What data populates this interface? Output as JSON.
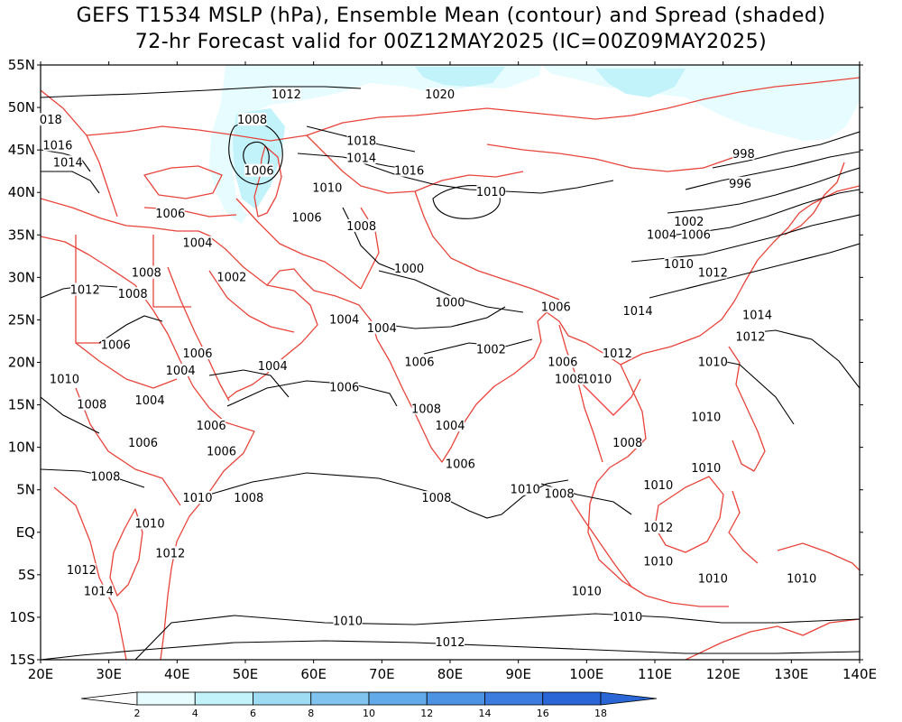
{
  "title_line1": "GEFS T1534 MSLP (hPa), Ensemble Mean (contour) and Spread (shaded)",
  "title_line2": "72-hr Forecast valid for 00Z12MAY2025 (IC=00Z09MAY2025)",
  "lat_labels": [
    "55N",
    "50N",
    "45N",
    "40N",
    "35N",
    "30N",
    "25N",
    "20N",
    "15N",
    "10N",
    "5N",
    "EQ",
    "5S",
    "10S",
    "15S"
  ],
  "lon_labels": [
    "20E",
    "30E",
    "40E",
    "50E",
    "60E",
    "70E",
    "80E",
    "90E",
    "100E",
    "110E",
    "120E",
    "130E",
    "140E"
  ],
  "colorbar": {
    "ticks": [
      "2",
      "4",
      "6",
      "8",
      "10",
      "12",
      "14",
      "16",
      "18"
    ],
    "colors": [
      "#e6fcff",
      "#c2f2fa",
      "#9ddcf2",
      "#7fc3ee",
      "#62aaea",
      "#4d93e4",
      "#3b7cde",
      "#2a66d6"
    ]
  },
  "contour_labels": [
    {
      "text": "1012",
      "lon": 56,
      "lat": 51.5
    },
    {
      "text": "1008",
      "lon": 51,
      "lat": 48.5
    },
    {
      "text": "1006",
      "lon": 52,
      "lat": 42.5
    },
    {
      "text": "1010",
      "lon": 62,
      "lat": 40.5
    },
    {
      "text": "1006",
      "lon": 59,
      "lat": 37
    },
    {
      "text": "1008",
      "lon": 67,
      "lat": 36
    },
    {
      "text": "1018",
      "lon": 67,
      "lat": 46
    },
    {
      "text": "1014",
      "lon": 67,
      "lat": 44
    },
    {
      "text": "1016",
      "lon": 74,
      "lat": 42.5
    },
    {
      "text": "1020",
      "lon": 78.5,
      "lat": 51.5
    },
    {
      "text": "1010",
      "lon": 86,
      "lat": 40
    },
    {
      "text": "998",
      "lon": 123,
      "lat": 44.5
    },
    {
      "text": "996",
      "lon": 122.5,
      "lat": 41
    },
    {
      "text": "1002",
      "lon": 115,
      "lat": 36.5
    },
    {
      "text": "1004",
      "lon": 111,
      "lat": 35
    },
    {
      "text": "1006",
      "lon": 116,
      "lat": 35
    },
    {
      "text": "1010",
      "lon": 113.5,
      "lat": 31.5
    },
    {
      "text": "1012",
      "lon": 118.5,
      "lat": 30.5
    },
    {
      "text": "1014",
      "lon": 107.5,
      "lat": 26
    },
    {
      "text": "1014",
      "lon": 125,
      "lat": 25.5
    },
    {
      "text": "1012",
      "lon": 124,
      "lat": 23
    },
    {
      "text": "1010",
      "lon": 118.5,
      "lat": 20
    },
    {
      "text": "1010",
      "lon": 117.5,
      "lat": 13.5
    },
    {
      "text": "1010",
      "lon": 117.5,
      "lat": 7.5
    },
    {
      "text": "1010",
      "lon": 110.5,
      "lat": 5.5
    },
    {
      "text": "1012",
      "lon": 110.5,
      "lat": 0.5
    },
    {
      "text": "1010",
      "lon": 110.5,
      "lat": -3.5
    },
    {
      "text": "1010",
      "lon": 118.5,
      "lat": -5.5
    },
    {
      "text": "1010",
      "lon": 131.5,
      "lat": -5.5
    },
    {
      "text": "1010",
      "lon": 100,
      "lat": -7
    },
    {
      "text": "1010",
      "lon": 106,
      "lat": -10
    },
    {
      "text": "1012",
      "lon": 80,
      "lat": -13
    },
    {
      "text": "1010",
      "lon": 65,
      "lat": -10.5
    },
    {
      "text": "1008",
      "lon": 78,
      "lat": 4
    },
    {
      "text": "1010",
      "lon": 91,
      "lat": 5
    },
    {
      "text": "1008",
      "lon": 96,
      "lat": 4.5
    },
    {
      "text": "1006",
      "lon": 81.5,
      "lat": 8
    },
    {
      "text": "1004",
      "lon": 80,
      "lat": 12.5
    },
    {
      "text": "1008",
      "lon": 76.5,
      "lat": 14.5
    },
    {
      "text": "1006",
      "lon": 75.5,
      "lat": 20
    },
    {
      "text": "1004",
      "lon": 70,
      "lat": 24
    },
    {
      "text": "1002",
      "lon": 86,
      "lat": 21.5
    },
    {
      "text": "1000",
      "lon": 80,
      "lat": 27
    },
    {
      "text": "1000",
      "lon": 74,
      "lat": 31
    },
    {
      "text": "1006",
      "lon": 95.5,
      "lat": 26.5
    },
    {
      "text": "1006",
      "lon": 96.5,
      "lat": 20
    },
    {
      "text": "1008",
      "lon": 97.5,
      "lat": 18
    },
    {
      "text": "1010",
      "lon": 101.5,
      "lat": 18
    },
    {
      "text": "1012",
      "lon": 104.5,
      "lat": 21
    },
    {
      "text": "1008",
      "lon": 106,
      "lat": 10.5
    },
    {
      "text": "1004",
      "lon": 64.5,
      "lat": 25
    },
    {
      "text": "1004",
      "lon": 54,
      "lat": 19.5
    },
    {
      "text": "1006",
      "lon": 64.5,
      "lat": 17
    },
    {
      "text": "1002",
      "lon": 48,
      "lat": 30
    },
    {
      "text": "1004",
      "lon": 43,
      "lat": 34
    },
    {
      "text": "1006",
      "lon": 39,
      "lat": 37.5
    },
    {
      "text": "1008",
      "lon": 35.5,
      "lat": 30.5
    },
    {
      "text": "1008",
      "lon": 33.5,
      "lat": 28
    },
    {
      "text": "1012",
      "lon": 26.5,
      "lat": 28.5
    },
    {
      "text": "1006",
      "lon": 31,
      "lat": 22
    },
    {
      "text": "1006",
      "lon": 43,
      "lat": 21
    },
    {
      "text": "1004",
      "lon": 40.5,
      "lat": 19
    },
    {
      "text": "1004",
      "lon": 36,
      "lat": 15.5
    },
    {
      "text": "1010",
      "lon": 23.5,
      "lat": 18
    },
    {
      "text": "1008",
      "lon": 27.5,
      "lat": 15
    },
    {
      "text": "1006",
      "lon": 35,
      "lat": 10.5
    },
    {
      "text": "1006",
      "lon": 45,
      "lat": 12.5
    },
    {
      "text": "1006",
      "lon": 46.5,
      "lat": 9.5
    },
    {
      "text": "1008",
      "lon": 29.5,
      "lat": 6.5
    },
    {
      "text": "1010",
      "lon": 43,
      "lat": 4
    },
    {
      "text": "1008",
      "lon": 50.5,
      "lat": 4
    },
    {
      "text": "1010",
      "lon": 36,
      "lat": 1
    },
    {
      "text": "1012",
      "lon": 39,
      "lat": -2.5
    },
    {
      "text": "1012",
      "lon": 26,
      "lat": -4.5
    },
    {
      "text": "1014",
      "lon": 28.5,
      "lat": -7
    },
    {
      "text": "018",
      "lon": 21.5,
      "lat": 48.5
    },
    {
      "text": "1016",
      "lon": 22.5,
      "lat": 45.5
    },
    {
      "text": "1014",
      "lon": 24,
      "lat": 43.5
    }
  ]
}
